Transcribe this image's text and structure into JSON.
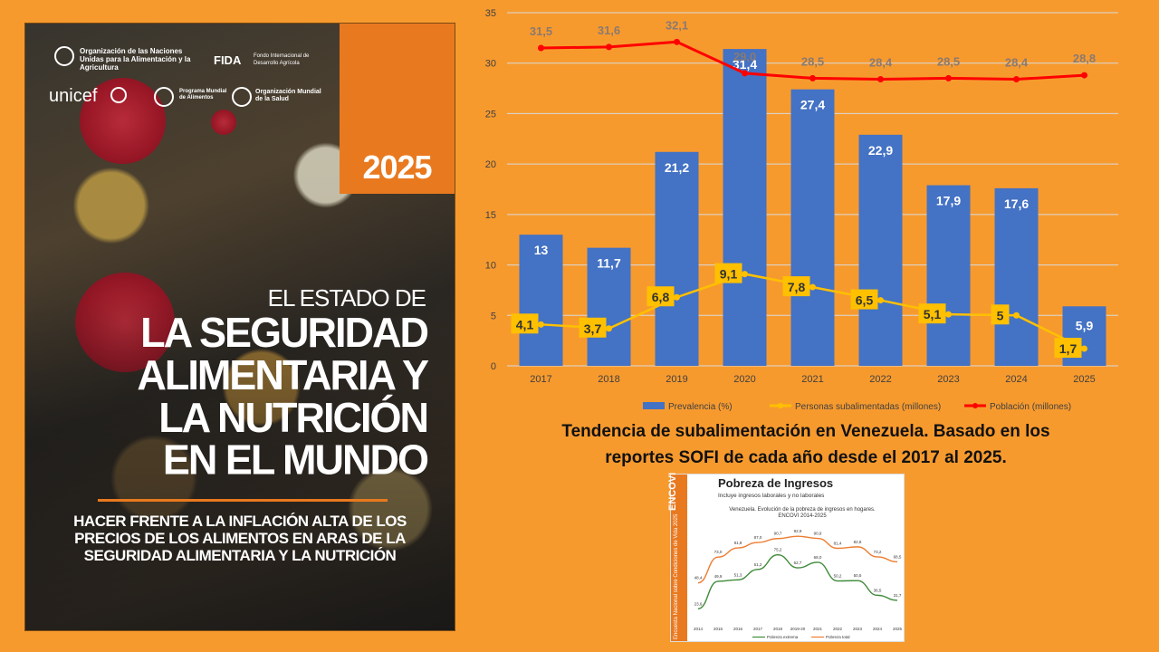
{
  "cover": {
    "org_fao": "Organización de las Naciones Unidas para la Alimentación y la Agricultura",
    "org_fida": "FIDA",
    "org_fida_sub": "Fondo Internacional de Desarrollo Agrícola",
    "org_unicef": "unicef",
    "org_pma": "Programa Mundial de Alimentos",
    "org_oms": "Organización Mundial de la Salud",
    "year": "2025",
    "title_line1": "EL ESTADO DE",
    "title_line2": "LA SEGURIDAD",
    "title_line3": "ALIMENTARIA Y",
    "title_line4": "LA NUTRICIÓN",
    "title_line5": "EN EL MUNDO",
    "subtitle_line1": "HACER FRENTE A LA INFLACIÓN ALTA DE LOS",
    "subtitle_line2": "PRECIOS DE LOS ALIMENTOS EN ARAS DE LA",
    "subtitle_line3": "SEGURIDAD ALIMENTARIA Y LA NUTRICIÓN"
  },
  "caption": {
    "line1": "Tendencia de subalimentación en Venezuela. Basado en los",
    "line2": "reportes SOFI de cada año desde el 2017 al 2025."
  },
  "chart_data": [
    {
      "type": "bar",
      "categories": [
        "2017",
        "2018",
        "2019",
        "2020",
        "2021",
        "2022",
        "2023",
        "2024",
        "2025"
      ],
      "ylim": [
        0,
        35
      ],
      "yticks": [
        "0",
        "5",
        "10",
        "15",
        "20",
        "25",
        "30",
        "35"
      ],
      "grid": true,
      "legend_position": "bottom",
      "series": [
        {
          "name": "Prevalencia (%)",
          "kind": "bar",
          "color": "#4472c4",
          "values": [
            13,
            11.7,
            21.2,
            31.4,
            27.4,
            22.9,
            17.9,
            17.6,
            5.9
          ],
          "labels": [
            "13",
            "11,7",
            "21,2",
            "31,4",
            "27,4",
            "22,9",
            "17,9",
            "17,6",
            "5,9"
          ]
        },
        {
          "name": "Personas subalimentadas (millones)",
          "kind": "line",
          "color": "#ffc000",
          "values": [
            4.1,
            3.7,
            6.8,
            9.1,
            7.8,
            6.5,
            5.1,
            5,
            1.7
          ],
          "labels": [
            "4,1",
            "3,7",
            "6,8",
            "9,1",
            "7,8",
            "6,5",
            "5,1",
            "5",
            "1,7"
          ]
        },
        {
          "name": "Población (millones)",
          "kind": "line",
          "color": "#ff0000",
          "values": [
            31.5,
            31.6,
            32.1,
            29.0,
            28.5,
            28.4,
            28.5,
            28.4,
            28.8
          ],
          "labels": [
            "31,5",
            "31,6",
            "32,1",
            "29,0",
            "28,5",
            "28,4",
            "28,5",
            "28,4",
            "28,8"
          ]
        }
      ]
    },
    {
      "type": "line",
      "title": "Pobreza de Ingresos",
      "subtitle": "Incluye ingresos laborales y no laborales",
      "note_line1": "Venezuela. Evolución de la pobreza de ingresos en hogares.",
      "note_line2": "ENCOVI 2014-2025",
      "brand": "ENCOVI",
      "brand_sub": "Encuesta Nacional sobre Condiciones de Vida 2025",
      "categories": [
        "2014",
        "2015",
        "2016",
        "2017",
        "2018",
        "2019-20",
        "2021",
        "2022",
        "2023",
        "2024",
        "2025"
      ],
      "ylim": [
        0,
        100
      ],
      "series": [
        {
          "name": "Pobreza extrema",
          "color": "#3f8a3a",
          "values": [
            23.6,
            49.9,
            51.3,
            61.2,
            75.2,
            62.7,
            68.0,
            50.2,
            50.5,
            36.5,
            31.7
          ],
          "labels": [
            "23,6",
            "49,9",
            "51,3",
            "61,2",
            "75,2",
            "62,7",
            "68,0",
            "50,2",
            "50,5",
            "36,5",
            "31,7"
          ]
        },
        {
          "name": "Pobreza total",
          "color": "#ed7d31",
          "values": [
            48.4,
            73.0,
            81.8,
            87.0,
            90.7,
            92.9,
            90.9,
            81.4,
            82.8,
            73.2,
            68.5
          ],
          "labels": [
            "48,4",
            "73,0",
            "81,8",
            "87,0",
            "90,7",
            "92,9",
            "90,9",
            "81,4",
            "82,8",
            "73,2",
            "68,5"
          ]
        }
      ]
    }
  ]
}
